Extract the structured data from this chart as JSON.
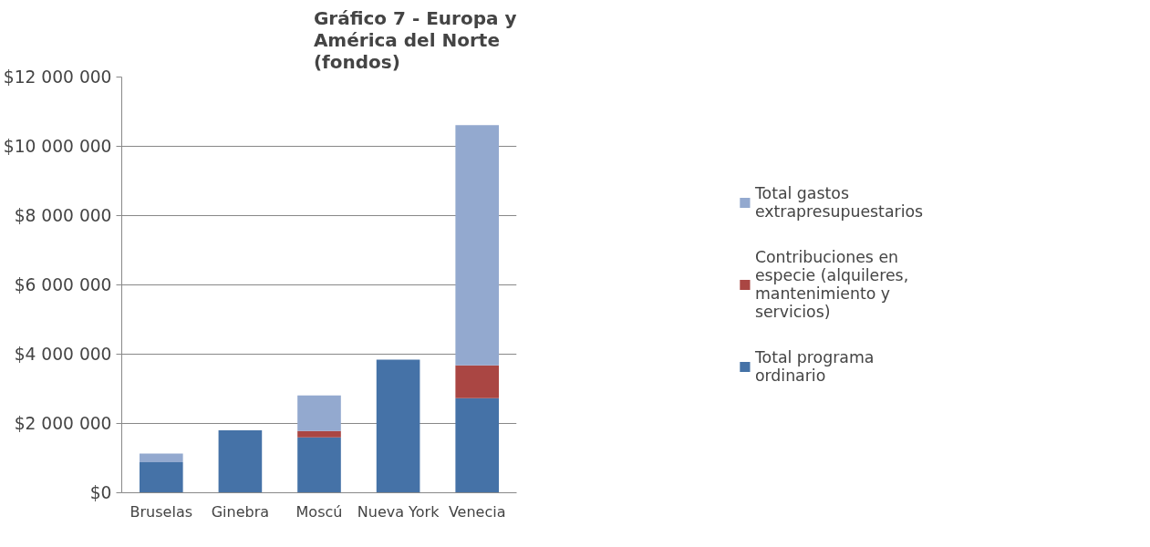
{
  "chart_data": {
    "type": "bar",
    "stacked": true,
    "title": "Gráfico 7 - Europa y América del Norte (fondos)",
    "categories": [
      "Bruselas",
      "Ginebra",
      "Moscú",
      "Nueva York",
      "Venecia"
    ],
    "series": [
      {
        "name": "Total programa ordinario",
        "color": "#4572a7",
        "values": [
          880000,
          1800000,
          1600000,
          3840000,
          2730000
        ]
      },
      {
        "name": "Contribuciones en especie (alquileres, mantenimiento y servicios)",
        "color": "#aa4643",
        "values": [
          0,
          0,
          180000,
          0,
          950000
        ]
      },
      {
        "name": "Total gastos extrapresupuestarios",
        "color": "#93a9cf",
        "values": [
          250000,
          0,
          1030000,
          0,
          6930000
        ]
      }
    ],
    "ylim": [
      0,
      12000000
    ],
    "yticks": [
      {
        "value": 0,
        "label": "$0"
      },
      {
        "value": 2000000,
        "label": "$2 000 000"
      },
      {
        "value": 4000000,
        "label": "$4 000 000"
      },
      {
        "value": 6000000,
        "label": "$6 000 000"
      },
      {
        "value": 8000000,
        "label": "$8 000 000"
      },
      {
        "value": 10000000,
        "label": "$10 000 000"
      },
      {
        "value": 12000000,
        "label": "$12 000 000"
      }
    ],
    "grid": "y",
    "legend": "right"
  }
}
